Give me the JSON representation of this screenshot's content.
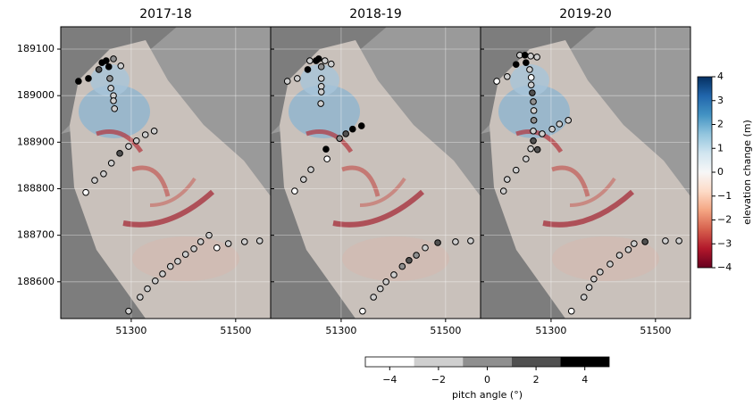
{
  "chart_data": [
    {
      "type": "scatter",
      "title": "2017-18",
      "xlim": [
        51165,
        51567
      ],
      "ylim": [
        188521,
        189148
      ],
      "xticks": [
        51300,
        51500
      ],
      "yticks": [
        188600,
        188700,
        188800,
        188900,
        189000,
        189100
      ],
      "show_ytick_labels": true,
      "grid": true,
      "series": [
        {
          "x": [
            51199,
            51218,
            51238,
            51244,
            51252,
            51257,
            51266,
            51280,
            51259,
            51261,
            51266,
            51266,
            51268,
            51278,
            51262,
            51247,
            51230,
            51213,
            51295,
            51310,
            51327,
            51344,
            51295,
            51317,
            51331,
            51346,
            51360,
            51375,
            51389,
            51404,
            51420,
            51433,
            51449,
            51464,
            51486,
            51517,
            51546
          ],
          "y": [
            189031,
            189037,
            189056,
            189071,
            189075,
            189062,
            189079,
            189064,
            189037,
            189016,
            189000,
            188989,
            188972,
            188876,
            188855,
            188832,
            188818,
            188792,
            188891,
            188903,
            188916,
            188924,
            188537,
            188567,
            188585,
            188602,
            188617,
            188633,
            188644,
            188659,
            188671,
            188686,
            188700,
            188673,
            188682,
            188686,
            188688
          ],
          "pitch": [
            4,
            4,
            2,
            4,
            4,
            4,
            0,
            -2,
            0,
            -2,
            -2,
            -2,
            -2,
            2,
            -2,
            -2,
            -2,
            -4,
            -2,
            -2,
            -2,
            -2,
            -2,
            -2,
            -2,
            -2,
            -2,
            -2,
            -2,
            -2,
            -2,
            -2,
            -2,
            -4,
            -2,
            -2,
            -2
          ]
        }
      ]
    },
    {
      "type": "scatter",
      "title": "2018-19",
      "xlim": [
        51165,
        51567
      ],
      "ylim": [
        188521,
        189148
      ],
      "xticks": [
        51300,
        51500
      ],
      "yticks": [
        188600,
        188700,
        188800,
        188900,
        189000,
        189100
      ],
      "show_ytick_labels": false,
      "grid": true,
      "series": [
        {
          "x": [
            51197,
            51216,
            51236,
            51240,
            51252,
            51257,
            51262,
            51269,
            51281,
            51262,
            51262,
            51262,
            51261,
            51271,
            51273,
            51297,
            51309,
            51322,
            51339,
            51242,
            51228,
            51211,
            51341,
            51362,
            51375,
            51386,
            51401,
            51417,
            51430,
            51444,
            51461,
            51485,
            51519,
            51548
          ],
          "y": [
            189031,
            189037,
            189056,
            189075,
            189075,
            189079,
            189062,
            189075,
            189068,
            189037,
            189020,
            189008,
            188983,
            188885,
            188864,
            188908,
            188918,
            188928,
            188935,
            188841,
            188820,
            188795,
            188537,
            188567,
            188585,
            188600,
            188615,
            188633,
            188646,
            188657,
            188673,
            188684,
            188686,
            188688
          ],
          "pitch": [
            -2,
            -2,
            4,
            -2,
            4,
            4,
            0,
            -2,
            -2,
            -2,
            -2,
            -2,
            -2,
            4,
            -4,
            0,
            2,
            4,
            4,
            -2,
            -2,
            -4,
            -4,
            -2,
            -2,
            -2,
            -2,
            0,
            2,
            0,
            -2,
            2,
            -2,
            -2
          ]
        }
      ]
    },
    {
      "type": "scatter",
      "title": "2019-20",
      "xlim": [
        51165,
        51567
      ],
      "ylim": [
        188521,
        189148
      ],
      "xticks": [
        51300,
        51500
      ],
      "yticks": [
        188600,
        188700,
        188800,
        188900,
        189000,
        189100
      ],
      "show_ytick_labels": false,
      "grid": true,
      "series": [
        {
          "x": [
            51196,
            51216,
            51233,
            51240,
            51250,
            51261,
            51273,
            51252,
            51259,
            51262,
            51262,
            51264,
            51266,
            51267,
            51267,
            51266,
            51266,
            51261,
            51274,
            51283,
            51302,
            51316,
            51333,
            51252,
            51233,
            51216,
            51209,
            51339,
            51363,
            51373,
            51382,
            51394,
            51413,
            51431,
            51448,
            51459,
            51480,
            51519,
            51545
          ],
          "y": [
            189031,
            189041,
            189067,
            189087,
            189087,
            189085,
            189083,
            189071,
            189056,
            189039,
            189023,
            189006,
            188987,
            188968,
            188947,
            188924,
            188903,
            188886,
            188884,
            188918,
            188928,
            188939,
            188947,
            188864,
            188840,
            188820,
            188795,
            188537,
            188567,
            188588,
            188606,
            188621,
            188638,
            188657,
            188669,
            188682,
            188686,
            188688,
            188688
          ],
          "pitch": [
            -4,
            -2,
            4,
            -2,
            4,
            -2,
            -2,
            4,
            -2,
            -4,
            -2,
            2,
            0,
            -2,
            0,
            -2,
            2,
            -2,
            2,
            -2,
            -2,
            -2,
            -2,
            -2,
            -2,
            -2,
            -2,
            -4,
            -2,
            -2,
            -2,
            -2,
            -2,
            -2,
            -2,
            -2,
            2,
            -2,
            -2
          ]
        }
      ]
    },
    {
      "type": "colorbar",
      "orientation": "vertical",
      "label": "elevation change (m)",
      "lim": [
        -4,
        4
      ],
      "ticks": [
        {
          "value": -4,
          "label": "−4"
        },
        {
          "value": -3,
          "label": "−3"
        },
        {
          "value": -2,
          "label": "−2"
        },
        {
          "value": -1,
          "label": "−1"
        },
        0,
        1,
        2,
        3,
        4
      ],
      "colors": [
        "#67001f",
        "#b2182b",
        "#d6604d",
        "#f4a582",
        "#fddbc7",
        "#f7f7f7",
        "#d1e5f0",
        "#92c5de",
        "#4393c3",
        "#2166ac",
        "#053061"
      ]
    },
    {
      "type": "colorbar",
      "orientation": "horizontal",
      "label": "pitch angle (°)",
      "lim": [
        -5,
        5
      ],
      "ticks": [
        {
          "value": -4,
          "label": "−4"
        },
        {
          "value": -2,
          "label": "−2"
        },
        0,
        2,
        4
      ],
      "bins": [
        -5,
        -3,
        -1,
        1,
        3,
        5
      ],
      "colors": [
        "#ffffff",
        "#cfcfcf",
        "#8f8f8f",
        "#505050",
        "#000000"
      ]
    }
  ]
}
